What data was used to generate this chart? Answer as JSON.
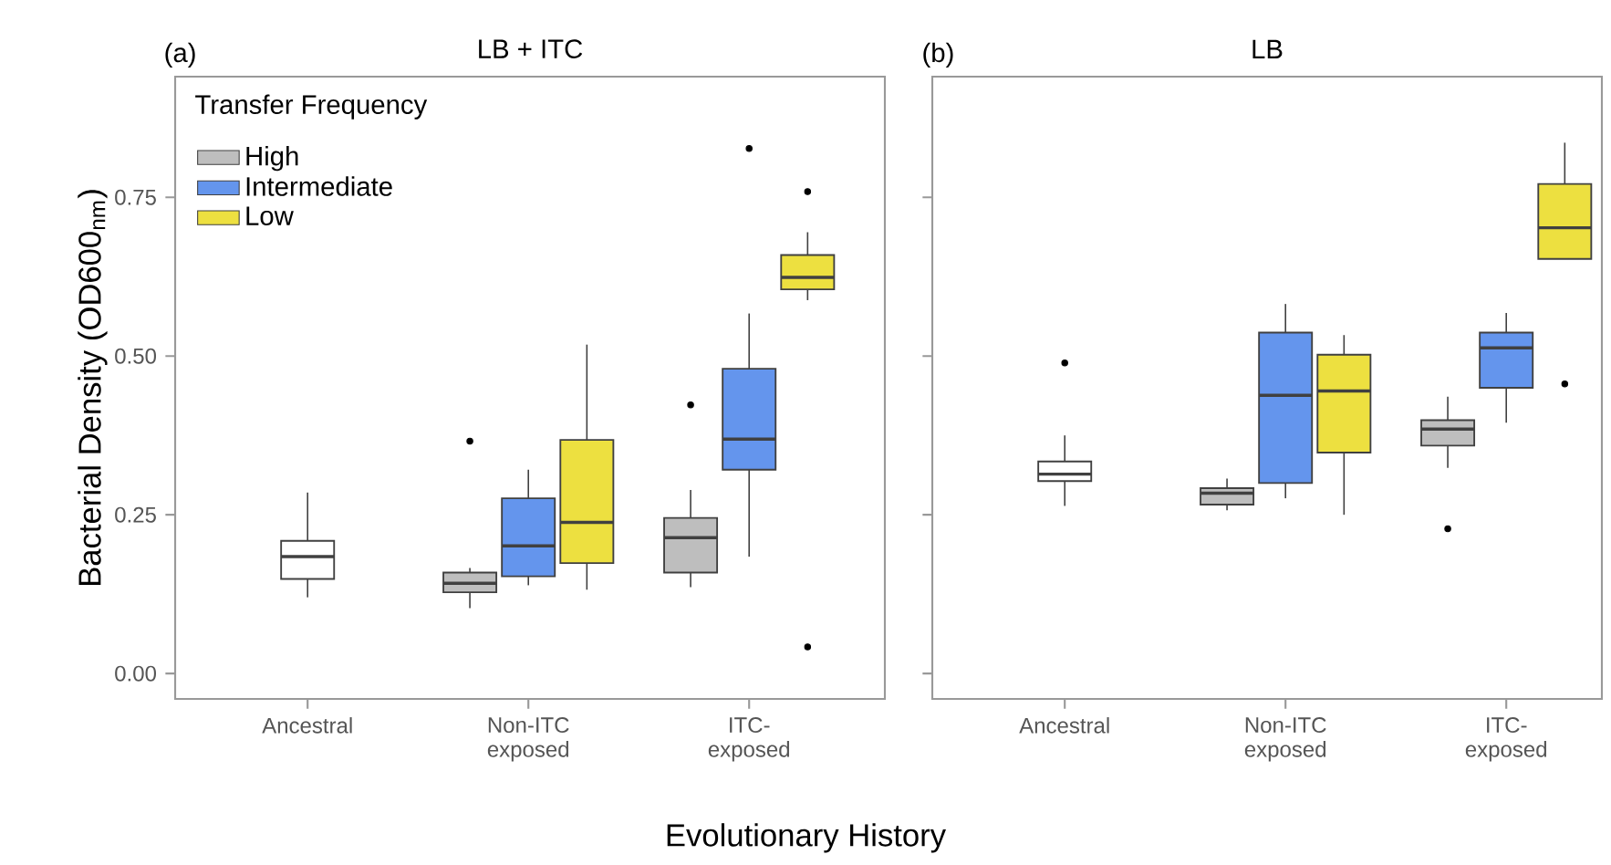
{
  "chart_data": [
    {
      "type": "box",
      "title": "LB + ITC",
      "annotations": [
        "(a)"
      ],
      "xlabel": "Evolutionary History",
      "ylabel": "Bacterial Density (OD600$_{nm}$)",
      "legend_title": "Transfer Frequency",
      "legend": "top left",
      "grid": false,
      "categories": [
        "Ancestral",
        "Non-ITC exposed",
        "ITC-exposed"
      ],
      "ylim": [
        -0.04,
        0.94
      ],
      "yticks": [
        {
          "value": 0,
          "label": "0.00"
        },
        {
          "value": 0.25,
          "label": "0.25"
        },
        {
          "value": 0.5,
          "label": "0.50"
        },
        {
          "value": 0.75,
          "label": "0.75"
        }
      ],
      "series": [
        {
          "color": "#ffffff",
          "boxes": [
            {
              "low": 0.12,
              "q1": 0.149,
              "median": 0.184,
              "q3": 0.209,
              "high": 0.285
            },
            null,
            null
          ]
        },
        {
          "name": "High",
          "color": "#bebebe",
          "boxes": [
            null,
            {
              "low": 0.103,
              "q1": 0.128,
              "median": 0.142,
              "q3": 0.159,
              "high": 0.166,
              "outliers": [
                0.366
              ]
            },
            {
              "low": 0.136,
              "q1": 0.159,
              "median": 0.214,
              "q3": 0.245,
              "high": 0.289,
              "outliers": [
                0.423
              ]
            }
          ]
        },
        {
          "name": "Intermediate",
          "color": "#6495ed",
          "boxes": [
            null,
            {
              "low": 0.139,
              "q1": 0.153,
              "median": 0.201,
              "q3": 0.276,
              "high": 0.321
            },
            {
              "low": 0.184,
              "q1": 0.321,
              "median": 0.369,
              "q3": 0.48,
              "high": 0.567,
              "outliers": [
                0.827
              ]
            }
          ]
        },
        {
          "name": "Low",
          "color": "#ede040",
          "boxes": [
            null,
            {
              "low": 0.132,
              "q1": 0.174,
              "median": 0.238,
              "q3": 0.368,
              "high": 0.518
            },
            {
              "low": 0.588,
              "q1": 0.605,
              "median": 0.624,
              "q3": 0.659,
              "high": 0.695,
              "outliers": [
                0.759,
                0.042
              ]
            }
          ]
        }
      ]
    },
    {
      "type": "box",
      "title": "LB",
      "annotations": [
        "(b)"
      ],
      "grid": false,
      "tick_labels": "x",
      "categories": [
        "Ancestral",
        "Non-ITC exposed",
        "ITC-exposed"
      ],
      "ylim": [
        -0.04,
        0.94
      ],
      "yticks": [
        {
          "value": 0,
          "label": null
        },
        {
          "value": 0.25,
          "label": null
        },
        {
          "value": 0.5,
          "label": null
        },
        {
          "value": 0.75,
          "label": null
        }
      ],
      "series": [
        {
          "color": "#ffffff",
          "boxes": [
            {
              "low": 0.264,
              "q1": 0.303,
              "median": 0.314,
              "q3": 0.334,
              "high": 0.375,
              "outliers": [
                0.489
              ]
            },
            null,
            null
          ]
        },
        {
          "color": "#bebebe",
          "boxes": [
            null,
            {
              "low": 0.257,
              "q1": 0.266,
              "median": 0.284,
              "q3": 0.292,
              "high": 0.307
            },
            {
              "low": 0.324,
              "q1": 0.359,
              "median": 0.385,
              "q3": 0.399,
              "high": 0.436,
              "outliers": [
                0.228
              ]
            }
          ]
        },
        {
          "color": "#6495ed",
          "boxes": [
            null,
            {
              "low": 0.276,
              "q1": 0.3,
              "median": 0.438,
              "q3": 0.537,
              "high": 0.582
            },
            {
              "low": 0.395,
              "q1": 0.45,
              "median": 0.513,
              "q3": 0.537,
              "high": 0.568
            }
          ]
        },
        {
          "color": "#ede040",
          "boxes": [
            null,
            {
              "low": 0.25,
              "q1": 0.348,
              "median": 0.445,
              "q3": 0.502,
              "high": 0.533
            },
            {
              "low": 0.653,
              "q1": 0.653,
              "median": 0.702,
              "q3": 0.771,
              "high": 0.836,
              "outliers": [
                0.456
              ]
            }
          ]
        }
      ]
    }
  ]
}
